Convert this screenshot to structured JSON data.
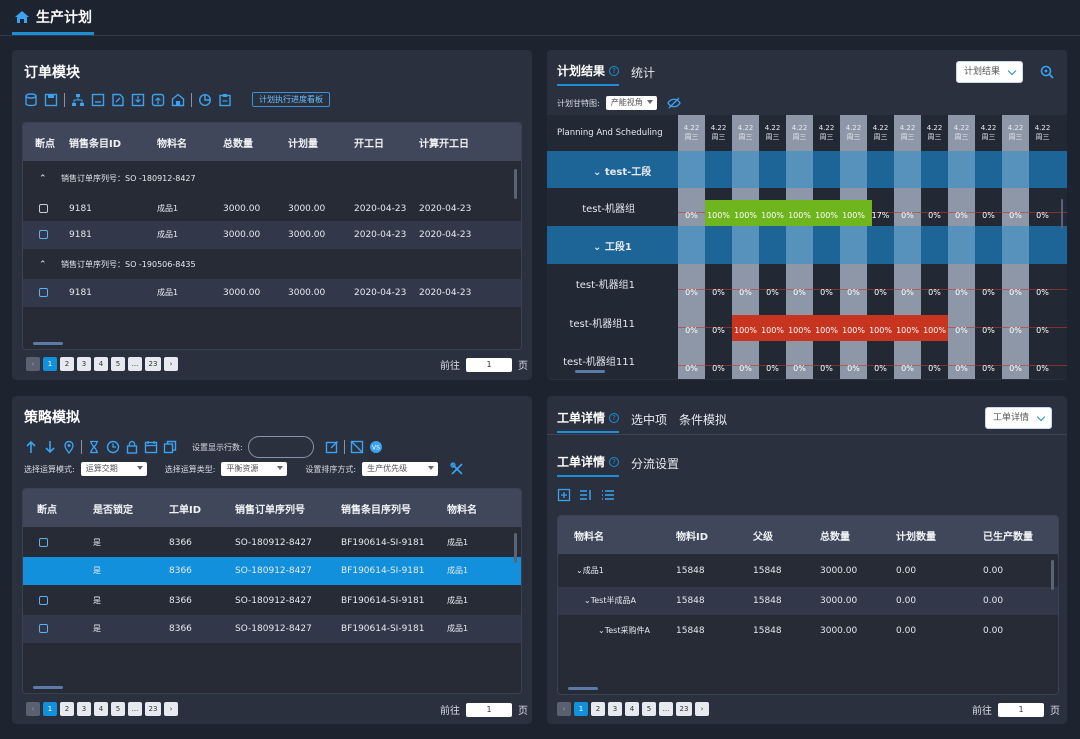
{
  "header": {
    "title": "生产计划",
    "icon": "home-icon"
  },
  "order_panel": {
    "title": "订单模块",
    "toolbar_link": "计划执行进度看板",
    "columns": [
      "断点",
      "销售条目ID",
      "物料名",
      "总数量",
      "计划量",
      "开工日",
      "计算开工日"
    ],
    "groups": [
      {
        "label": "销售订单序列号：SO -180912-8427"
      },
      {
        "label": "销售订单序列号：SO -190506-8435"
      }
    ],
    "rows": [
      {
        "id": "9181",
        "material": "成品1",
        "total": "3000.00",
        "plan": "3000.00",
        "start": "2020-04-23",
        "calc_start": "2020-04-23"
      },
      {
        "id": "9181",
        "material": "成品1",
        "total": "3000.00",
        "plan": "3000.00",
        "start": "2020-04-23",
        "calc_start": "2020-04-23"
      },
      {
        "id": "9181",
        "material": "成品1",
        "total": "3000.00",
        "plan": "3000.00",
        "start": "2020-04-23",
        "calc_start": "2020-04-23"
      }
    ],
    "pager": {
      "pages": [
        "1",
        "2",
        "3",
        "4",
        "5",
        "...",
        "23"
      ],
      "goto_label": "前往",
      "goto_value": "1",
      "page_unit": "页"
    }
  },
  "plan_panel": {
    "tabs": [
      "计划结果",
      "统计"
    ],
    "dropdown": "计划结果",
    "gantt_label": "计划甘特图:",
    "gantt_select": "产能视角",
    "header_label": "Planning And Scheduling",
    "date_top": "4.22",
    "day_labels": [
      "周三",
      "周三",
      "周三",
      "周三",
      "周三",
      "周三",
      "周三",
      "周三",
      "周三",
      "周三",
      "周三",
      "周三",
      "周三",
      "周三"
    ],
    "rows": [
      {
        "label": "test-工段",
        "type": "group"
      },
      {
        "label": "test-机器组",
        "type": "item",
        "values": [
          "0%",
          "100%",
          "100%",
          "100%",
          "100%",
          "100%",
          "100%",
          "17%",
          "0%",
          "0%",
          "0%",
          "0%",
          "0%",
          "0%"
        ]
      },
      {
        "label": "工段1",
        "type": "group"
      },
      {
        "label": "test-机器组1",
        "type": "item",
        "values": [
          "0%",
          "0%",
          "0%",
          "0%",
          "0%",
          "0%",
          "0%",
          "0%",
          "0%",
          "0%",
          "0%",
          "0%",
          "0%",
          "0%"
        ]
      },
      {
        "label": "test-机器组11",
        "type": "item",
        "values": [
          "0%",
          "0%",
          "100%",
          "100%",
          "100%",
          "100%",
          "100%",
          "100%",
          "100%",
          "100%",
          "0%",
          "0%",
          "0%",
          "0%"
        ]
      },
      {
        "label": "test-机器组111",
        "type": "item",
        "values": [
          "0%",
          "0%",
          "0%",
          "0%",
          "0%",
          "0%",
          "0%",
          "0%",
          "0%",
          "0%",
          "0%",
          "0%",
          "0%",
          "0%"
        ]
      }
    ],
    "colors": {
      "green": "#6fb51e",
      "red": "#c7341f",
      "group": "#1d6a9e"
    }
  },
  "strategy_panel": {
    "title": "策略模拟",
    "rows_label": "设置显示行数:",
    "mode_label": "选择运算模式:",
    "mode_value": "运算交期",
    "type_label": "选择运算类型:",
    "type_value": "平衡资源",
    "sort_label": "设置排序方式:",
    "sort_value": "生产优先级",
    "columns": [
      "断点",
      "是否锁定",
      "工单ID",
      "销售订单序列号",
      "销售条目序列号",
      "物料名"
    ],
    "rows": [
      {
        "lock": "是",
        "id": "8366",
        "so": "SO-180912-8427",
        "bf": "BF190614-SI-9181",
        "material": "成品1"
      },
      {
        "lock": "是",
        "id": "8366",
        "so": "SO-180912-8427",
        "bf": "BF190614-SI-9181",
        "material": "成品1"
      },
      {
        "lock": "是",
        "id": "8366",
        "so": "SO-180912-8427",
        "bf": "BF190614-SI-9181",
        "material": "成品1"
      },
      {
        "lock": "是",
        "id": "8366",
        "so": "SO-180912-8427",
        "bf": "BF190614-SI-9181",
        "material": "成品1"
      }
    ],
    "pager": {
      "pages": [
        "1",
        "2",
        "3",
        "4",
        "5",
        "...",
        "23"
      ],
      "goto_label": "前往",
      "goto_value": "1",
      "page_unit": "页"
    }
  },
  "workorder_panel": {
    "tabs": [
      "工单详情",
      "选中项",
      "条件模拟"
    ],
    "dropdown": "工单详情",
    "subtabs": [
      "工单详情",
      "分流设置"
    ],
    "columns": [
      "物料名",
      "物料ID",
      "父级",
      "总数量",
      "计划数量",
      "已生产数量"
    ],
    "rows": [
      {
        "name": "成品1",
        "id": "15848",
        "parent": "15848",
        "total": "3000.00",
        "plan": "0.00",
        "done": "0.00"
      },
      {
        "name": "Test半成品A",
        "id": "15848",
        "parent": "15848",
        "total": "3000.00",
        "plan": "0.00",
        "done": "0.00"
      },
      {
        "name": "Test采购件A",
        "id": "15848",
        "parent": "15848",
        "total": "3000.00",
        "plan": "0.00",
        "done": "0.00"
      }
    ],
    "pager": {
      "pages": [
        "1",
        "2",
        "3",
        "4",
        "5",
        "...",
        "23"
      ],
      "goto_label": "前往",
      "goto_value": "1",
      "page_unit": "页"
    }
  }
}
